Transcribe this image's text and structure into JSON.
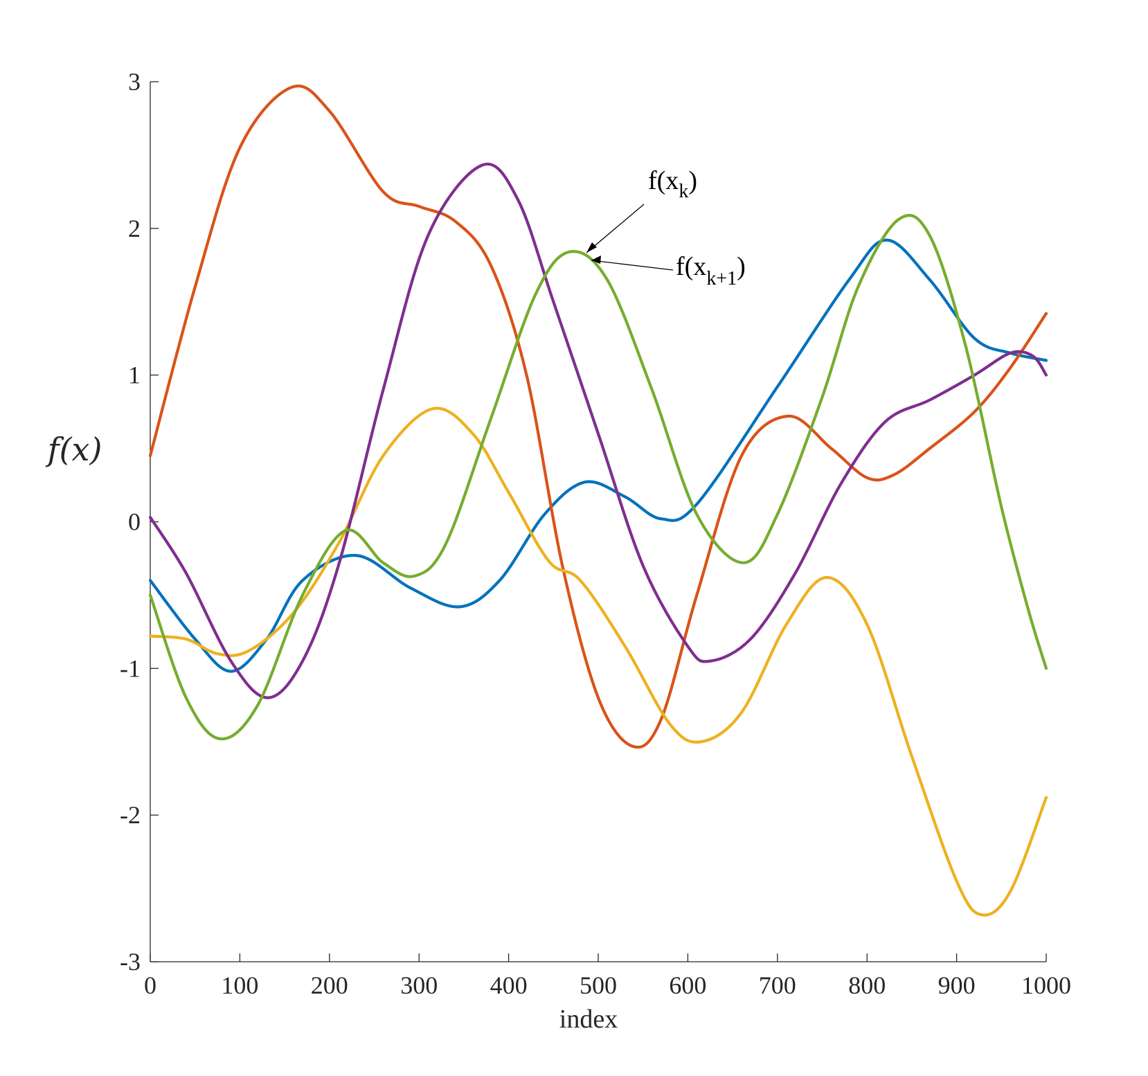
{
  "chart_data": {
    "type": "line",
    "xlabel": "index",
    "ylabel": "f(x)",
    "xlim": [
      0,
      1000
    ],
    "ylim": [
      -3,
      3
    ],
    "x_ticks": [
      0,
      100,
      200,
      300,
      400,
      500,
      600,
      700,
      800,
      900,
      1000
    ],
    "y_ticks": [
      3,
      2,
      1,
      0,
      -1,
      -2,
      -3
    ],
    "grid": false,
    "legend": "none",
    "series": [
      {
        "color": "#0072BD",
        "points": [
          [
            0,
            -0.4
          ],
          [
            50,
            -0.8
          ],
          [
            90,
            -1.02
          ],
          [
            130,
            -0.8
          ],
          [
            170,
            -0.4
          ],
          [
            230,
            -0.23
          ],
          [
            290,
            -0.45
          ],
          [
            345,
            -0.58
          ],
          [
            390,
            -0.4
          ],
          [
            440,
            0.05
          ],
          [
            485,
            0.27
          ],
          [
            530,
            0.17
          ],
          [
            570,
            0.02
          ],
          [
            610,
            0.12
          ],
          [
            700,
            0.92
          ],
          [
            780,
            1.65
          ],
          [
            822,
            1.92
          ],
          [
            870,
            1.65
          ],
          [
            920,
            1.25
          ],
          [
            960,
            1.15
          ],
          [
            1000,
            1.1
          ]
        ]
      },
      {
        "color": "#D95319",
        "points": [
          [
            0,
            0.45
          ],
          [
            50,
            1.6
          ],
          [
            100,
            2.55
          ],
          [
            157,
            2.96
          ],
          [
            200,
            2.8
          ],
          [
            260,
            2.25
          ],
          [
            300,
            2.15
          ],
          [
            340,
            2.05
          ],
          [
            380,
            1.75
          ],
          [
            420,
            1.0
          ],
          [
            460,
            -0.3
          ],
          [
            500,
            -1.2
          ],
          [
            538,
            -1.53
          ],
          [
            570,
            -1.35
          ],
          [
            610,
            -0.5
          ],
          [
            660,
            0.45
          ],
          [
            712,
            0.72
          ],
          [
            760,
            0.5
          ],
          [
            800,
            0.3
          ],
          [
            830,
            0.32
          ],
          [
            870,
            0.5
          ],
          [
            920,
            0.75
          ],
          [
            960,
            1.05
          ],
          [
            1000,
            1.42
          ]
        ]
      },
      {
        "color": "#EDB120",
        "points": [
          [
            0,
            -0.78
          ],
          [
            40,
            -0.8
          ],
          [
            75,
            -0.9
          ],
          [
            110,
            -0.88
          ],
          [
            160,
            -0.62
          ],
          [
            210,
            -0.15
          ],
          [
            260,
            0.45
          ],
          [
            315,
            0.77
          ],
          [
            360,
            0.6
          ],
          [
            400,
            0.2
          ],
          [
            445,
            -0.27
          ],
          [
            480,
            -0.4
          ],
          [
            530,
            -0.85
          ],
          [
            580,
            -1.38
          ],
          [
            615,
            -1.5
          ],
          [
            660,
            -1.3
          ],
          [
            710,
            -0.7
          ],
          [
            755,
            -0.38
          ],
          [
            800,
            -0.7
          ],
          [
            850,
            -1.6
          ],
          [
            900,
            -2.45
          ],
          [
            928,
            -2.68
          ],
          [
            960,
            -2.52
          ],
          [
            1000,
            -1.88
          ]
        ]
      },
      {
        "color": "#7E2F8E",
        "points": [
          [
            0,
            0.03
          ],
          [
            40,
            -0.35
          ],
          [
            90,
            -0.95
          ],
          [
            131,
            -1.2
          ],
          [
            170,
            -0.95
          ],
          [
            210,
            -0.3
          ],
          [
            260,
            0.9
          ],
          [
            310,
            1.95
          ],
          [
            370,
            2.43
          ],
          [
            410,
            2.2
          ],
          [
            450,
            1.5
          ],
          [
            500,
            0.6
          ],
          [
            550,
            -0.3
          ],
          [
            600,
            -0.85
          ],
          [
            625,
            -0.95
          ],
          [
            670,
            -0.8
          ],
          [
            720,
            -0.35
          ],
          [
            770,
            0.25
          ],
          [
            820,
            0.68
          ],
          [
            870,
            0.83
          ],
          [
            920,
            1.0
          ],
          [
            960,
            1.15
          ],
          [
            985,
            1.13
          ],
          [
            1000,
            1.0
          ]
        ]
      },
      {
        "color": "#77AC30",
        "points": [
          [
            0,
            -0.5
          ],
          [
            40,
            -1.2
          ],
          [
            78,
            -1.48
          ],
          [
            120,
            -1.25
          ],
          [
            170,
            -0.5
          ],
          [
            218,
            -0.06
          ],
          [
            260,
            -0.28
          ],
          [
            295,
            -0.37
          ],
          [
            330,
            -0.15
          ],
          [
            380,
            0.7
          ],
          [
            430,
            1.55
          ],
          [
            468,
            1.84
          ],
          [
            510,
            1.65
          ],
          [
            560,
            0.9
          ],
          [
            610,
            0.05
          ],
          [
            662,
            -0.28
          ],
          [
            700,
            0.05
          ],
          [
            750,
            0.85
          ],
          [
            790,
            1.6
          ],
          [
            835,
            2.06
          ],
          [
            870,
            1.95
          ],
          [
            910,
            1.2
          ],
          [
            950,
            0.1
          ],
          [
            980,
            -0.6
          ],
          [
            1000,
            -1.0
          ]
        ]
      }
    ],
    "annotations": [
      {
        "text": "f(x",
        "sub": "k",
        "close": ")",
        "target": [
          485,
          1.82
        ]
      },
      {
        "text": "f(x",
        "sub": "k+1",
        "close": ")",
        "target": [
          495,
          1.79
        ]
      }
    ]
  }
}
